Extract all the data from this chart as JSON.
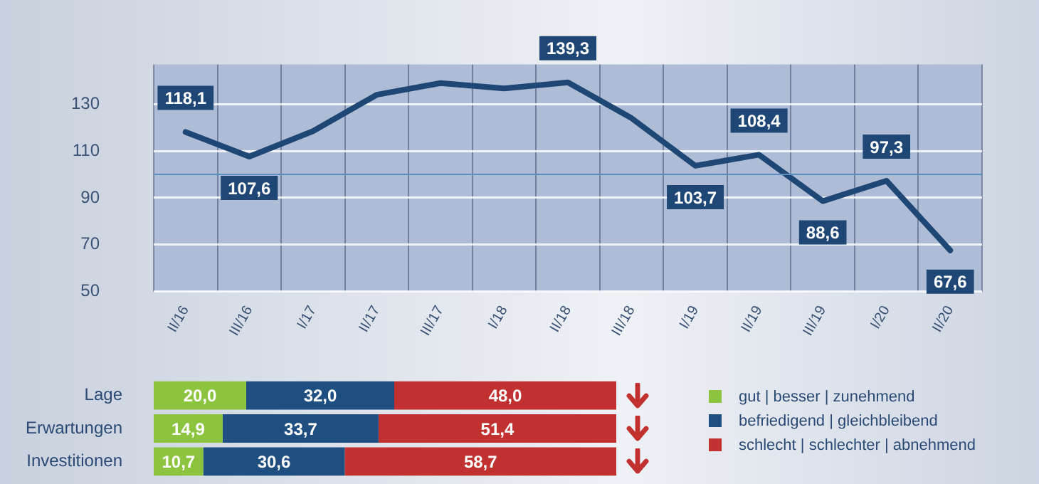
{
  "chart_data": [
    {
      "type": "line",
      "categories": [
        "II/16",
        "III/16",
        "I/17",
        "II/17",
        "III/17",
        "I/18",
        "II/18",
        "III/18",
        "I/19",
        "II/19",
        "III/19",
        "I/20",
        "II/20"
      ],
      "series": [
        {
          "color": "#1f4776",
          "values": [
            118.1,
            107.6,
            118.5,
            134,
            139,
            136.7,
            139.3,
            124,
            103.7,
            108.4,
            88.6,
            97.3,
            67.6
          ],
          "value_labels": [
            "118,1",
            "107,6",
            null,
            null,
            null,
            null,
            "139,3",
            null,
            "103,7",
            "108,4",
            "88,6",
            "97,3",
            "67,6"
          ]
        }
      ],
      "ylim": [
        50,
        147
      ],
      "yticks": [
        50,
        70,
        90,
        110,
        130
      ],
      "grid": true,
      "legend": false,
      "marker": "none",
      "line_style": "solid",
      "ref_lines": [
        {
          "axis": "y",
          "value": 100,
          "color": "#5b8fc0"
        }
      ]
    },
    {
      "type": "bar",
      "orientation": "horizontal",
      "stacked": true,
      "categories": [
        "Lage",
        "Erwartungen",
        "Investitionen"
      ],
      "series": [
        {
          "name": "gut | besser | zunehmend",
          "color": "#8dc43f",
          "values": [
            20,
            14.9,
            10.7
          ],
          "value_labels": [
            "20,0",
            "14,9",
            "10,7"
          ]
        },
        {
          "name": "befriedigend | gleichbleibend",
          "color": "#1f4e80",
          "values": [
            32,
            33.7,
            30.6
          ],
          "value_labels": [
            "32,0",
            "33,7",
            "30,6"
          ]
        },
        {
          "name": "schlecht | schlechter | abnehmend",
          "color": "#c0312f",
          "values": [
            48,
            51.4,
            58.7
          ],
          "value_labels": [
            "48,0",
            "51,4",
            "58,7"
          ]
        }
      ],
      "tick_labels": "y",
      "grid": false,
      "legend": "right"
    }
  ]
}
